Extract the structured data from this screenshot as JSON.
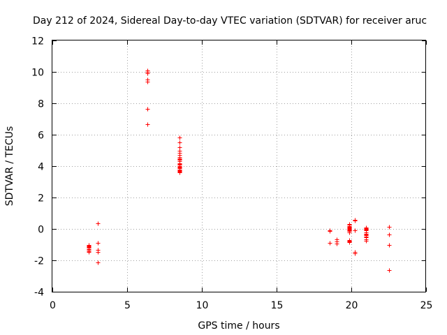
{
  "chart_data": {
    "type": "scatter",
    "title": "Day 212 of 2024, Sidereal Day-to-day VTEC variation (SDTVAR) for receiver aruc",
    "xlabel": "GPS time / hours",
    "ylabel": "SDTVAR / TECUs",
    "xlim": [
      0,
      25
    ],
    "ylim": [
      -4,
      12
    ],
    "xticks": [
      0,
      5,
      10,
      15,
      20,
      25
    ],
    "yticks": [
      -4,
      -2,
      0,
      2,
      4,
      6,
      8,
      10,
      12
    ],
    "grid": true,
    "marker": "+",
    "color": "#ff0000",
    "series": [
      {
        "name": "SDTVAR",
        "x": [
          2.45,
          2.45,
          2.45,
          2.45,
          2.45,
          2.45,
          2.45,
          2.45,
          2.45,
          3.05,
          3.05,
          3.05,
          3.05,
          3.05,
          6.35,
          6.35,
          6.35,
          6.35,
          6.35,
          6.35,
          6.35,
          8.5,
          8.5,
          8.5,
          8.5,
          8.5,
          8.5,
          8.5,
          8.5,
          8.5,
          8.5,
          8.5,
          8.5,
          8.5,
          8.5,
          8.5,
          8.5,
          8.5,
          8.5,
          8.5,
          8.5,
          8.5,
          8.5,
          8.5,
          18.55,
          18.55,
          18.55,
          19.0,
          19.0,
          19.0,
          19.85,
          19.85,
          19.85,
          19.85,
          19.85,
          19.85,
          19.85,
          19.85,
          19.85,
          19.85,
          19.85,
          19.85,
          19.85,
          19.85,
          19.85,
          20.25,
          20.25,
          20.25,
          20.25,
          20.25,
          21.0,
          21.0,
          21.0,
          21.0,
          21.0,
          21.0,
          21.0,
          21.0,
          21.0,
          21.0,
          21.0,
          21.0,
          21.0,
          22.5,
          22.5,
          22.5,
          22.5
        ],
        "y": [
          -1.0,
          -1.05,
          -1.1,
          -1.15,
          -1.2,
          -1.3,
          -1.35,
          -1.4,
          -1.45,
          0.35,
          -0.9,
          -1.35,
          -1.45,
          -2.15,
          10.1,
          10.0,
          9.9,
          9.5,
          9.4,
          7.65,
          6.65,
          5.8,
          5.5,
          5.2,
          5.0,
          4.85,
          4.7,
          4.6,
          4.5,
          4.4,
          4.3,
          4.2,
          4.15,
          4.1,
          4.0,
          3.95,
          3.9,
          3.85,
          3.8,
          3.75,
          3.7,
          3.65,
          3.6,
          4.45,
          -0.1,
          -0.15,
          -0.9,
          -0.65,
          -0.8,
          -0.95,
          0.3,
          0.25,
          0.2,
          0.15,
          0.1,
          0.05,
          0.0,
          -0.05,
          -0.1,
          -0.15,
          -0.2,
          -0.7,
          -0.75,
          -0.8,
          -0.85,
          0.6,
          0.55,
          -0.1,
          -1.45,
          -1.55,
          0.1,
          0.05,
          0.0,
          -0.05,
          -0.1,
          -0.2,
          -0.3,
          -0.35,
          -0.4,
          -0.5,
          -0.55,
          -0.65,
          -0.75,
          0.15,
          -0.35,
          -1.0,
          -2.6
        ]
      }
    ]
  }
}
